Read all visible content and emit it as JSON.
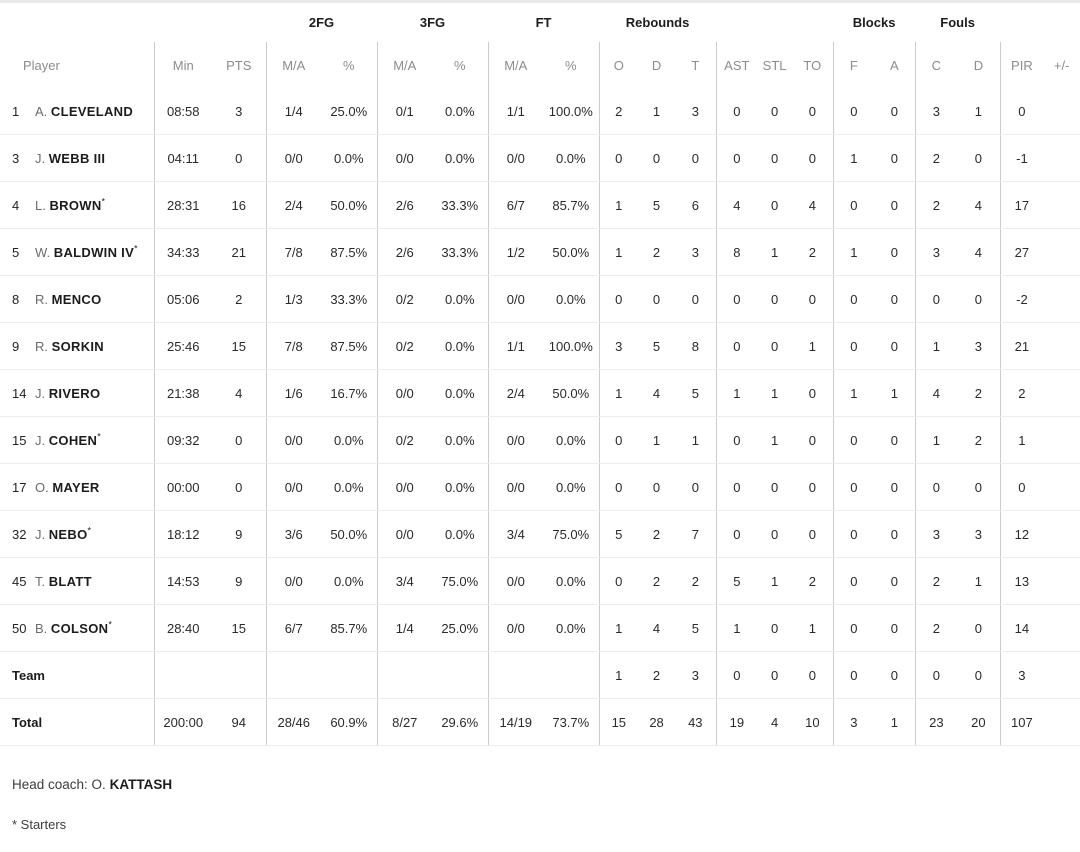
{
  "starter_mark": "*",
  "colors": {
    "header_text": "#8c8c8c",
    "bold_text": "#1c1c1c",
    "divider": "#cccccc",
    "row_separator": "#ececec",
    "top_strip": "#e9e9e9"
  },
  "header": {
    "groups": {
      "fg2": "2FG",
      "fg3": "3FG",
      "ft": "FT",
      "rebounds": "Rebounds",
      "blocks": "Blocks",
      "fouls": "Fouls"
    },
    "cols": {
      "player": "Player",
      "min": "Min",
      "pts": "PTS",
      "ma": "M/A",
      "pct": "%",
      "o": "O",
      "d": "D",
      "t": "T",
      "ast": "AST",
      "stl": "STL",
      "to": "TO",
      "f": "F",
      "a": "A",
      "c": "C",
      "d2": "D",
      "pir": "PIR",
      "pm": "+/-"
    }
  },
  "rows": [
    {
      "type": "player",
      "no": "1",
      "initial": "A.",
      "name": "CLEVELAND",
      "starter": false,
      "stats": [
        "08:58",
        "3",
        "1/4",
        "25.0%",
        "0/1",
        "0.0%",
        "1/1",
        "100.0%",
        "2",
        "1",
        "3",
        "0",
        "0",
        "0",
        "0",
        "0",
        "3",
        "1",
        "0",
        ""
      ]
    },
    {
      "type": "player",
      "no": "3",
      "initial": "J.",
      "name": "WEBB III",
      "starter": false,
      "stats": [
        "04:11",
        "0",
        "0/0",
        "0.0%",
        "0/0",
        "0.0%",
        "0/0",
        "0.0%",
        "0",
        "0",
        "0",
        "0",
        "0",
        "0",
        "1",
        "0",
        "2",
        "0",
        "-1",
        ""
      ]
    },
    {
      "type": "player",
      "no": "4",
      "initial": "L.",
      "name": "BROWN",
      "starter": true,
      "stats": [
        "28:31",
        "16",
        "2/4",
        "50.0%",
        "2/6",
        "33.3%",
        "6/7",
        "85.7%",
        "1",
        "5",
        "6",
        "4",
        "0",
        "4",
        "0",
        "0",
        "2",
        "4",
        "17",
        ""
      ]
    },
    {
      "type": "player",
      "no": "5",
      "initial": "W.",
      "name": "BALDWIN IV",
      "starter": true,
      "stats": [
        "34:33",
        "21",
        "7/8",
        "87.5%",
        "2/6",
        "33.3%",
        "1/2",
        "50.0%",
        "1",
        "2",
        "3",
        "8",
        "1",
        "2",
        "1",
        "0",
        "3",
        "4",
        "27",
        ""
      ]
    },
    {
      "type": "player",
      "no": "8",
      "initial": "R.",
      "name": "MENCO",
      "starter": false,
      "stats": [
        "05:06",
        "2",
        "1/3",
        "33.3%",
        "0/2",
        "0.0%",
        "0/0",
        "0.0%",
        "0",
        "0",
        "0",
        "0",
        "0",
        "0",
        "0",
        "0",
        "0",
        "0",
        "-2",
        ""
      ]
    },
    {
      "type": "player",
      "no": "9",
      "initial": "R.",
      "name": "SORKIN",
      "starter": false,
      "stats": [
        "25:46",
        "15",
        "7/8",
        "87.5%",
        "0/2",
        "0.0%",
        "1/1",
        "100.0%",
        "3",
        "5",
        "8",
        "0",
        "0",
        "1",
        "0",
        "0",
        "1",
        "3",
        "21",
        ""
      ]
    },
    {
      "type": "player",
      "no": "14",
      "initial": "J.",
      "name": "RIVERO",
      "starter": false,
      "stats": [
        "21:38",
        "4",
        "1/6",
        "16.7%",
        "0/0",
        "0.0%",
        "2/4",
        "50.0%",
        "1",
        "4",
        "5",
        "1",
        "1",
        "0",
        "1",
        "1",
        "4",
        "2",
        "2",
        ""
      ]
    },
    {
      "type": "player",
      "no": "15",
      "initial": "J.",
      "name": "COHEN",
      "starter": true,
      "stats": [
        "09:32",
        "0",
        "0/0",
        "0.0%",
        "0/2",
        "0.0%",
        "0/0",
        "0.0%",
        "0",
        "1",
        "1",
        "0",
        "1",
        "0",
        "0",
        "0",
        "1",
        "2",
        "1",
        ""
      ]
    },
    {
      "type": "player",
      "no": "17",
      "initial": "O.",
      "name": "MAYER",
      "starter": false,
      "stats": [
        "00:00",
        "0",
        "0/0",
        "0.0%",
        "0/0",
        "0.0%",
        "0/0",
        "0.0%",
        "0",
        "0",
        "0",
        "0",
        "0",
        "0",
        "0",
        "0",
        "0",
        "0",
        "0",
        ""
      ]
    },
    {
      "type": "player",
      "no": "32",
      "initial": "J.",
      "name": "NEBO",
      "starter": true,
      "stats": [
        "18:12",
        "9",
        "3/6",
        "50.0%",
        "0/0",
        "0.0%",
        "3/4",
        "75.0%",
        "5",
        "2",
        "7",
        "0",
        "0",
        "0",
        "0",
        "0",
        "3",
        "3",
        "12",
        ""
      ]
    },
    {
      "type": "player",
      "no": "45",
      "initial": "T.",
      "name": "BLATT",
      "starter": false,
      "stats": [
        "14:53",
        "9",
        "0/0",
        "0.0%",
        "3/4",
        "75.0%",
        "0/0",
        "0.0%",
        "0",
        "2",
        "2",
        "5",
        "1",
        "2",
        "0",
        "0",
        "2",
        "1",
        "13",
        ""
      ]
    },
    {
      "type": "player",
      "no": "50",
      "initial": "B.",
      "name": "COLSON",
      "starter": true,
      "stats": [
        "28:40",
        "15",
        "6/7",
        "85.7%",
        "1/4",
        "25.0%",
        "0/0",
        "0.0%",
        "1",
        "4",
        "5",
        "1",
        "0",
        "1",
        "0",
        "0",
        "2",
        "0",
        "14",
        ""
      ]
    },
    {
      "type": "summary",
      "label": "Team",
      "stats": [
        "",
        "",
        "",
        "",
        "",
        "",
        "",
        "",
        "1",
        "2",
        "3",
        "0",
        "0",
        "0",
        "0",
        "0",
        "0",
        "0",
        "3",
        ""
      ]
    },
    {
      "type": "summary",
      "label": "Total",
      "stats": [
        "200:00",
        "94",
        "28/46",
        "60.9%",
        "8/27",
        "29.6%",
        "14/19",
        "73.7%",
        "15",
        "28",
        "43",
        "19",
        "4",
        "10",
        "3",
        "1",
        "23",
        "20",
        "107",
        ""
      ]
    }
  ],
  "footer": {
    "head_coach_prefix": "Head coach: O.",
    "head_coach_name": "KATTASH",
    "starters_note": "* Starters"
  }
}
